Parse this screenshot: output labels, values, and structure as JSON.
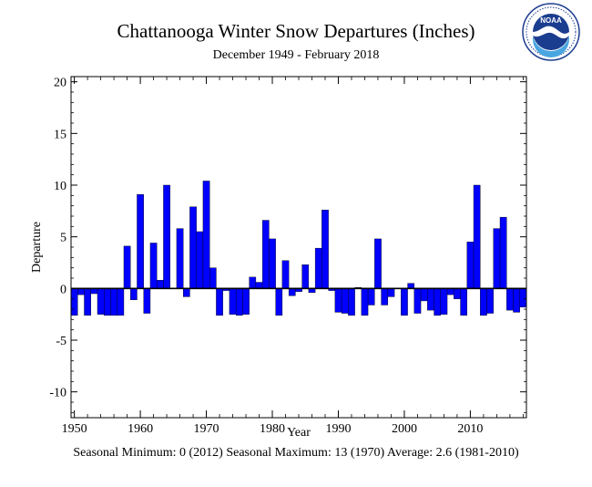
{
  "logo": {
    "text": "NOAA",
    "icon": "noaa-logo-icon",
    "colors": {
      "outer": "#1b3d8f",
      "inner": "#4aa6e0",
      "bird": "#ffffff"
    }
  },
  "header": {
    "title": "Chattanooga Winter Snow Departures (Inches)",
    "subtitle": "December 1949 - February 2018"
  },
  "footer": {
    "text": "Seasonal Minimum: 0 (2012) Seasonal Maximum: 13 (1970) Average: 2.6 (1981-2010)"
  },
  "chart_data": {
    "type": "bar",
    "xlabel": "Year",
    "ylabel": "Departure",
    "xlim": [
      1949.5,
      2018.5
    ],
    "ylim": [
      -12.5,
      20.5
    ],
    "yticks": [
      -10,
      -5,
      0,
      5,
      10,
      15,
      20
    ],
    "xticks": [
      1950,
      1960,
      1970,
      1980,
      1990,
      2000,
      2010
    ],
    "bar_color": "#0000ff",
    "x": [
      1950,
      1951,
      1952,
      1953,
      1954,
      1955,
      1956,
      1957,
      1958,
      1959,
      1960,
      1961,
      1962,
      1963,
      1964,
      1965,
      1966,
      1967,
      1968,
      1969,
      1970,
      1971,
      1972,
      1973,
      1974,
      1975,
      1976,
      1977,
      1978,
      1979,
      1980,
      1981,
      1982,
      1983,
      1984,
      1985,
      1986,
      1987,
      1988,
      1989,
      1990,
      1991,
      1992,
      1993,
      1994,
      1995,
      1996,
      1997,
      1998,
      1999,
      2000,
      2001,
      2002,
      2003,
      2004,
      2005,
      2006,
      2007,
      2008,
      2009,
      2010,
      2011,
      2012,
      2013,
      2014,
      2015,
      2016,
      2017,
      2018
    ],
    "values": [
      -2.6,
      -0.6,
      -2.6,
      -0.5,
      -2.5,
      -2.6,
      -2.6,
      -2.6,
      4.1,
      -1.1,
      9.1,
      -2.4,
      4.4,
      0.8,
      10.0,
      0.0,
      5.8,
      -0.8,
      7.9,
      5.5,
      10.4,
      2.0,
      -2.6,
      -0.2,
      -2.5,
      -2.6,
      -2.5,
      1.1,
      0.6,
      6.6,
      4.8,
      -2.6,
      2.7,
      -0.7,
      -0.3,
      2.3,
      -0.4,
      3.9,
      7.6,
      -0.2,
      -2.3,
      -2.4,
      -2.6,
      0.1,
      -2.6,
      -1.6,
      4.8,
      -1.6,
      -0.8,
      0.0,
      -2.6,
      0.5,
      -2.4,
      -1.2,
      -2.1,
      -2.6,
      -2.5,
      -0.6,
      -1.0,
      -2.6,
      4.5,
      10.0,
      -2.6,
      -2.4,
      5.8,
      6.9,
      -2.1,
      -2.3,
      -1.8
    ]
  }
}
